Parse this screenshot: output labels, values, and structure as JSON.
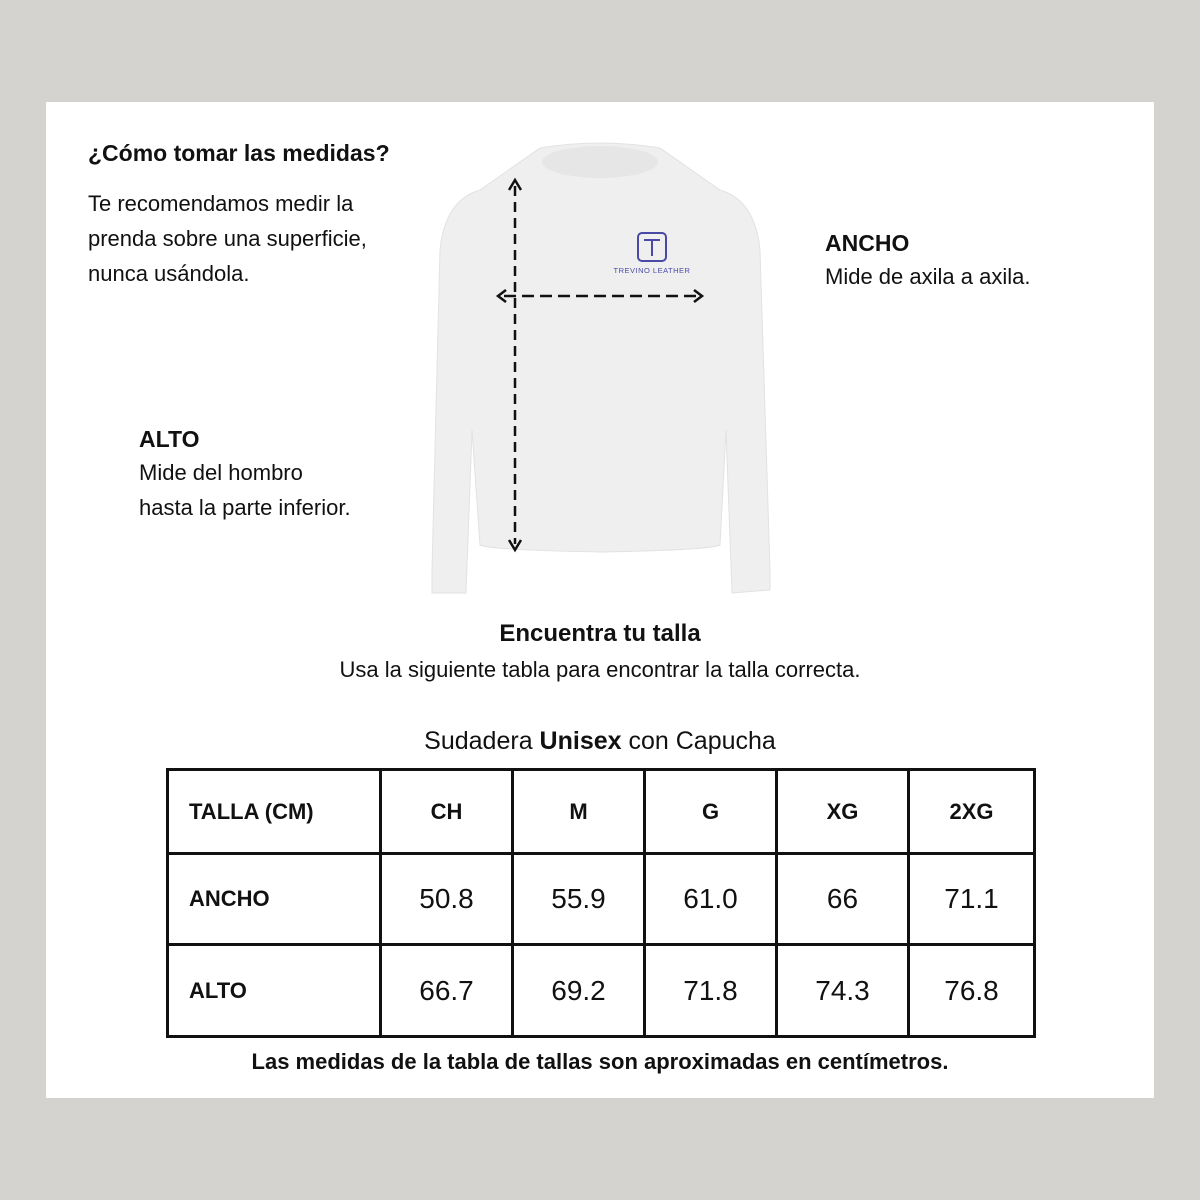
{
  "howto": {
    "title": "¿Cómo tomar las medidas?",
    "lines": [
      "Te recomendamos medir la",
      "prenda sobre una superficie,",
      "nunca usándola."
    ]
  },
  "ancho": {
    "title": "ANCHO",
    "desc": "Mide de axila a axila."
  },
  "alto": {
    "title": "ALTO",
    "lines": [
      "Mide del hombro",
      "hasta la parte inferior."
    ]
  },
  "garment": {
    "logo_text": "TREVINO LEATHER",
    "logo_color": "#4a4aa6"
  },
  "find": {
    "title": "Encuentra tu talla",
    "subtitle": "Usa la siguiente tabla para encontrar la talla correcta."
  },
  "table_title": {
    "pre": "Sudadera ",
    "bold": "Unisex",
    "post": " con Capucha"
  },
  "size_table": {
    "header": [
      "TALLA (CM)",
      "CH",
      "M",
      "G",
      "XG",
      "2XG"
    ],
    "rows": [
      [
        "ANCHO",
        "50.8",
        "55.9",
        "61.0",
        "66",
        "71.1"
      ],
      [
        "ALTO",
        "66.7",
        "69.2",
        "71.8",
        "74.3",
        "76.8"
      ]
    ]
  },
  "footnote": "Las medidas de la tabla de tallas son aproximadas en centímetros."
}
